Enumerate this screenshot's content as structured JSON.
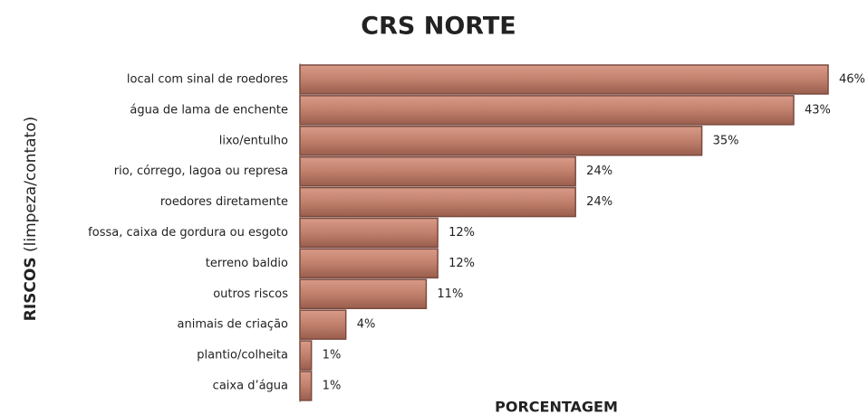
{
  "chart_data": {
    "type": "bar",
    "orientation": "horizontal",
    "title": "CRS NORTE",
    "xlabel": "PORCENTAGEM",
    "ylabel": {
      "bold": "RISCOS",
      "rest": "(limpeza/contato)"
    },
    "categories": [
      "local com sinal de roedores",
      "água de lama de enchente",
      "lixo/entulho",
      "rio, córrego, lagoa ou represa",
      "roedores diretamente",
      "fossa, caixa de gordura ou esgoto",
      "terreno baldio",
      "outros riscos",
      "animais de criação",
      "plantio/colheita",
      "caixa d’água"
    ],
    "values": [
      46,
      43,
      35,
      24,
      24,
      12,
      12,
      11,
      4,
      1,
      1
    ],
    "value_labels": [
      "46%",
      "43%",
      "35%",
      "24%",
      "24%",
      "12%",
      "12%",
      "11%",
      "4%",
      "1%",
      "1%"
    ],
    "color": "#b8725f"
  }
}
